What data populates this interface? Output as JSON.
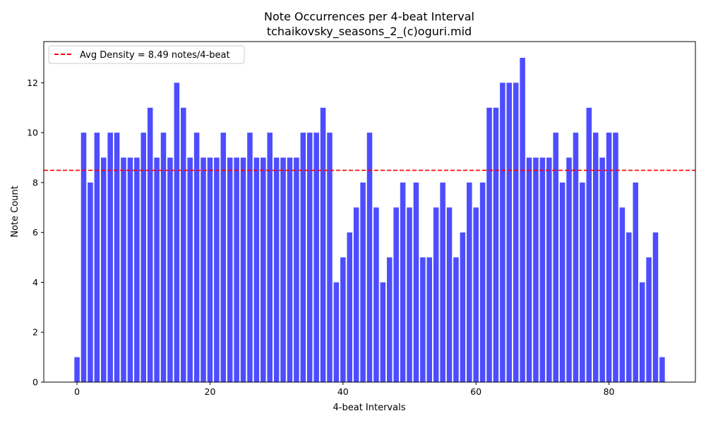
{
  "chart_data": {
    "type": "bar",
    "title": "Note Occurrences per 4-beat Interval",
    "subtitle": "tchaikovsky_seasons_2_(c)oguri.mid",
    "xlabel": "4-beat Intervals",
    "ylabel": "Note Count",
    "xlim": [
      -5,
      93
    ],
    "ylim": [
      0,
      13.65
    ],
    "xticks": [
      0,
      20,
      40,
      60,
      80
    ],
    "yticks": [
      0,
      2,
      4,
      6,
      8,
      10,
      12
    ],
    "bar_color": "#4d4dff",
    "x": [
      0,
      1,
      2,
      3,
      4,
      5,
      6,
      7,
      8,
      9,
      10,
      11,
      12,
      13,
      14,
      15,
      16,
      17,
      18,
      19,
      20,
      21,
      22,
      23,
      24,
      25,
      26,
      27,
      28,
      29,
      30,
      31,
      32,
      33,
      34,
      35,
      36,
      37,
      38,
      39,
      40,
      41,
      42,
      43,
      44,
      45,
      46,
      47,
      48,
      49,
      50,
      51,
      52,
      53,
      54,
      55,
      56,
      57,
      58,
      59,
      60,
      61,
      62,
      63,
      64,
      65,
      66,
      67,
      68,
      69,
      70,
      71,
      72,
      73,
      74,
      75,
      76,
      77,
      78,
      79,
      80,
      81,
      82,
      83,
      84,
      85,
      86,
      87,
      88
    ],
    "values": [
      1,
      10,
      8,
      10,
      9,
      10,
      10,
      9,
      9,
      9,
      10,
      11,
      9,
      10,
      9,
      12,
      11,
      9,
      10,
      9,
      9,
      9,
      10,
      9,
      9,
      9,
      10,
      9,
      9,
      10,
      9,
      9,
      9,
      9,
      10,
      10,
      10,
      11,
      10,
      4,
      5,
      6,
      7,
      8,
      10,
      7,
      4,
      5,
      7,
      8,
      7,
      8,
      5,
      5,
      7,
      8,
      7,
      5,
      6,
      8,
      7,
      8,
      11,
      11,
      12,
      12,
      12,
      13,
      9,
      9,
      9,
      9,
      10,
      8,
      9,
      10,
      8,
      11,
      10,
      9,
      10,
      10,
      7,
      6,
      8,
      4,
      5,
      6,
      1
    ],
    "reference_line": {
      "value": 8.49,
      "color": "#ff0000",
      "style": "dashed",
      "label": "Avg Density = 8.49 notes/4-beat"
    },
    "legend": {
      "position": "top-left",
      "entries": [
        "Avg Density = 8.49 notes/4-beat"
      ]
    },
    "grid": false
  }
}
